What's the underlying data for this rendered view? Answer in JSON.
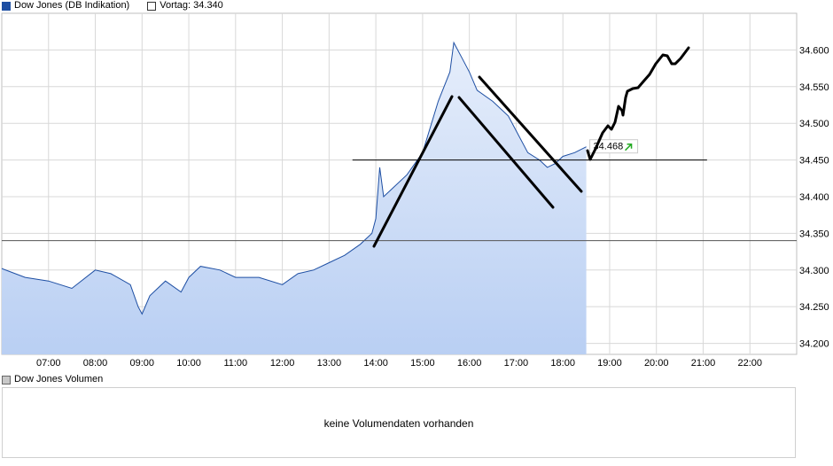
{
  "legend": {
    "series_name": "Dow Jones (DB Indikation)",
    "prev_close_label": "Vortag: 34.340"
  },
  "price_badge": {
    "value": "34.468",
    "trend_icon": "arrow-up-right-icon",
    "trend_color": "#22aa22"
  },
  "volume": {
    "title": "Dow Jones Volumen",
    "message": "keine Volumendaten vorhanden"
  },
  "colors": {
    "line": "#1e4fa3",
    "fill_top": "#e6eefb",
    "fill_bottom": "#b9cff3",
    "grid": "#d8d8d8"
  },
  "chart_data": {
    "type": "area",
    "title": "Dow Jones (DB Indikation)",
    "xlabel": "",
    "ylabel": "",
    "x_ticks": [
      "07:00",
      "08:00",
      "09:00",
      "10:00",
      "11:00",
      "12:00",
      "13:00",
      "14:00",
      "15:00",
      "16:00",
      "17:00",
      "18:00",
      "19:00",
      "20:00",
      "21:00",
      "22:00"
    ],
    "y_ticks": [
      "34.200",
      "34.250",
      "34.300",
      "34.350",
      "34.400",
      "34.450",
      "34.500",
      "34.550",
      "34.600"
    ],
    "xlim": [
      "06:00",
      "23:00"
    ],
    "ylim": [
      34185,
      34650
    ],
    "grid": true,
    "series": [
      {
        "name": "Dow Jones (DB Indikation)",
        "x": [
          "06:00",
          "06:30",
          "07:00",
          "07:30",
          "08:00",
          "08:20",
          "08:45",
          "08:55",
          "09:00",
          "09:10",
          "09:30",
          "09:50",
          "10:00",
          "10:15",
          "10:40",
          "11:00",
          "11:30",
          "12:00",
          "12:20",
          "12:40",
          "13:00",
          "13:20",
          "13:40",
          "13:55",
          "14:00",
          "14:05",
          "14:10",
          "14:20",
          "14:40",
          "15:00",
          "15:20",
          "15:35",
          "15:40",
          "15:50",
          "16:00",
          "16:10",
          "16:30",
          "16:50",
          "17:00",
          "17:15",
          "17:30",
          "17:40",
          "17:50",
          "18:00",
          "18:15",
          "18:30"
        ],
        "values": [
          34302,
          34290,
          34285,
          34275,
          34300,
          34295,
          34280,
          34250,
          34240,
          34265,
          34285,
          34270,
          34290,
          34305,
          34300,
          34290,
          34290,
          34280,
          34295,
          34300,
          34310,
          34320,
          34335,
          34350,
          34370,
          34440,
          34400,
          34410,
          34430,
          34460,
          34530,
          34570,
          34610,
          34590,
          34570,
          34545,
          34530,
          34510,
          34490,
          34460,
          34450,
          34440,
          34445,
          34455,
          34460,
          34468
        ]
      }
    ],
    "reference_lines": [
      {
        "label": "Vortag",
        "value": 34340
      },
      {
        "value": 34450
      }
    ]
  }
}
